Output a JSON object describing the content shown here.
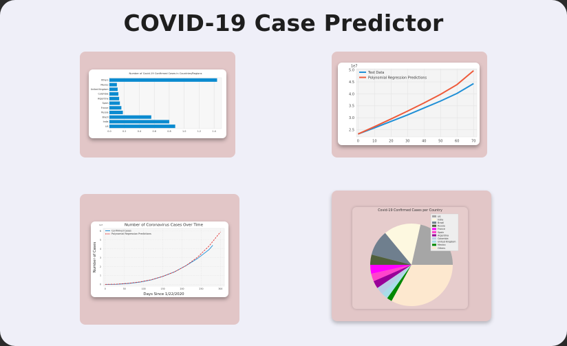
{
  "page": {
    "title": "COVID-19 Case Predictor"
  },
  "colors": {
    "background": "#efeff8",
    "card": "#e2c6c7",
    "bar": "#0b8bd0",
    "test_line": "#1f8fd6",
    "pred_line": "#ee5a3a"
  },
  "chart_data": [
    {
      "type": "bar",
      "orientation": "horizontal",
      "title": "Number of Covid-19 Confirmed Cases in Countries/Regions",
      "categories": [
        "US",
        "India",
        "Brazil",
        "Russia",
        "France",
        "Spain",
        "Argentina",
        "Colombia",
        "United Kingdom",
        "Mexico",
        "Others"
      ],
      "values": [
        0.88,
        0.8,
        0.56,
        0.18,
        0.16,
        0.14,
        0.13,
        0.12,
        0.11,
        0.1,
        1.44
      ],
      "xticks": [
        "0.0",
        "0.2",
        "0.4",
        "0.6",
        "0.8",
        "1.0",
        "1.2",
        "1.4"
      ],
      "xlim": [
        0,
        1.5
      ],
      "grid": true
    },
    {
      "type": "line",
      "scale_label": "1e7",
      "x": [
        0,
        10,
        20,
        30,
        40,
        50,
        60,
        70
      ],
      "xticks": [
        "0",
        "10",
        "20",
        "30",
        "40",
        "50",
        "60",
        "70"
      ],
      "yticks": [
        "2.5",
        "3.0",
        "3.5",
        "4.0",
        "4.5",
        "5.0"
      ],
      "ylim": [
        2.2,
        5.05
      ],
      "xlim": [
        -1,
        72
      ],
      "legend_position": "top-left",
      "series": [
        {
          "name": "Test Data",
          "color": "#1f8fd6",
          "values": [
            2.32,
            2.58,
            2.85,
            3.12,
            3.41,
            3.7,
            4.02,
            4.43
          ]
        },
        {
          "name": "Polynomial Regression Predictions",
          "color": "#ee5a3a",
          "values": [
            2.32,
            2.63,
            2.95,
            3.28,
            3.62,
            3.98,
            4.39,
            4.97
          ]
        }
      ]
    },
    {
      "type": "line",
      "title": "Number of Coronavirus Cases Over Time",
      "xlabel": "Days Since 1/22/2020",
      "ylabel": "Number of Cases",
      "scale_label": "1e7",
      "xticks": [
        "0",
        "50",
        "100",
        "150",
        "200",
        "250",
        "300"
      ],
      "yticks": [
        "0",
        "1",
        "2",
        "3",
        "4",
        "5",
        "6"
      ],
      "xlim": [
        -5,
        310
      ],
      "ylim": [
        -0.2,
        6.3
      ],
      "legend_position": "top-left",
      "grid": true,
      "series": [
        {
          "name": "Confirmed Cases",
          "color": "#1f8fd6",
          "style": "solid",
          "x": [
            0,
            30,
            60,
            90,
            120,
            150,
            180,
            210,
            240,
            270,
            280
          ],
          "values": [
            0.0,
            0.01,
            0.1,
            0.25,
            0.5,
            0.9,
            1.4,
            2.1,
            2.9,
            3.9,
            4.4
          ]
        },
        {
          "name": "Polynomial Regression Predictions",
          "color": "#e03030",
          "style": "dashed",
          "x": [
            0,
            30,
            60,
            90,
            120,
            150,
            180,
            210,
            240,
            270,
            300
          ],
          "values": [
            0.0,
            0.03,
            0.12,
            0.28,
            0.52,
            0.9,
            1.4,
            2.1,
            3.05,
            4.3,
            5.9
          ]
        }
      ]
    },
    {
      "type": "pie",
      "title": "Covid-19 Confirmed Cases per Country",
      "legend_position": "top-right",
      "labels": [
        "US",
        "India",
        "Brazil",
        "Russia",
        "France",
        "Spain",
        "Argentina",
        "Colombia",
        "United Kingdom",
        "Mexico",
        "Others"
      ],
      "values": [
        21.5,
        14.5,
        10.0,
        4.0,
        3.5,
        3.0,
        3.0,
        3.0,
        2.5,
        2.0,
        33.0
      ],
      "colors": [
        "#a6a6a6",
        "#fdf8e0",
        "#6f7f8e",
        "#4f5f3a",
        "#ff00ff",
        "#ff44cc",
        "#990099",
        "#b8cde6",
        "#a8dde8",
        "#008800",
        "#fde8cf"
      ]
    }
  ]
}
